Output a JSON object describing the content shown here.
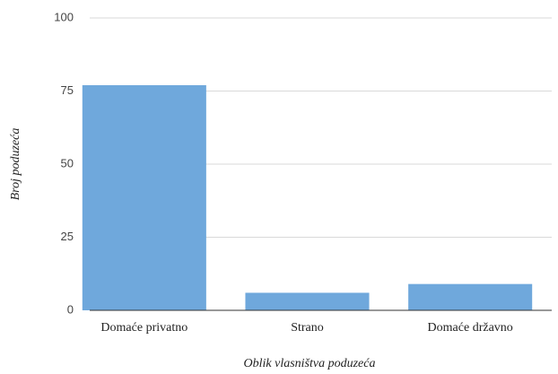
{
  "chart_data": {
    "type": "bar",
    "x_label": "Oblik vlasništva poduzeća",
    "y_label": "Broj poduzeća",
    "categories": [
      "Domaće privatno",
      "Strano",
      "Domaće državno"
    ],
    "values": [
      77,
      6,
      9
    ],
    "color": "#6fa8dc",
    "ylim": [
      0,
      100
    ],
    "yticks": [
      0,
      25,
      50,
      75,
      100
    ],
    "grid": true
  }
}
